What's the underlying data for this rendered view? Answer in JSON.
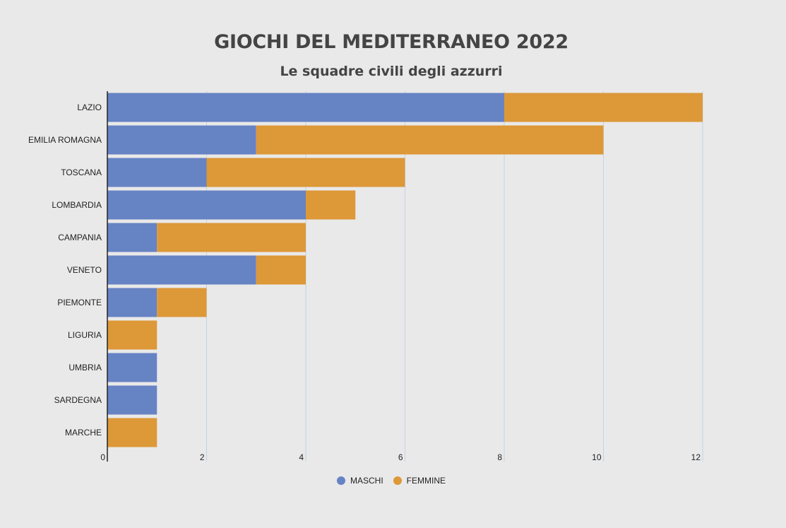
{
  "chart_data": {
    "type": "bar",
    "orientation": "horizontal",
    "stacked": true,
    "title": "GIOCHI DEL MEDITERRANEO 2022",
    "subtitle": "Le squadre civili degli azzurri",
    "categories": [
      "LAZIO",
      "EMILIA ROMAGNA",
      "TOSCANA",
      "LOMBARDIA",
      "CAMPANIA",
      "VENETO",
      "PIEMONTE",
      "LIGURIA",
      "UMBRIA",
      "SARDEGNA",
      "MARCHE"
    ],
    "series": [
      {
        "name": "MASCHI",
        "color": "#6683c4",
        "values": [
          8,
          3,
          2,
          4,
          1,
          3,
          1,
          0,
          1,
          1,
          0
        ]
      },
      {
        "name": "FEMMINE",
        "color": "#dd9838",
        "values": [
          4,
          7,
          4,
          1,
          3,
          1,
          1,
          1,
          0,
          0,
          1
        ]
      }
    ],
    "xlim": [
      0,
      12
    ],
    "xticks": [
      "0",
      "2",
      "4",
      "6",
      "8",
      "10",
      "12"
    ],
    "xlabel": "",
    "ylabel": "",
    "grid": true,
    "legend_position": "bottom-center"
  }
}
